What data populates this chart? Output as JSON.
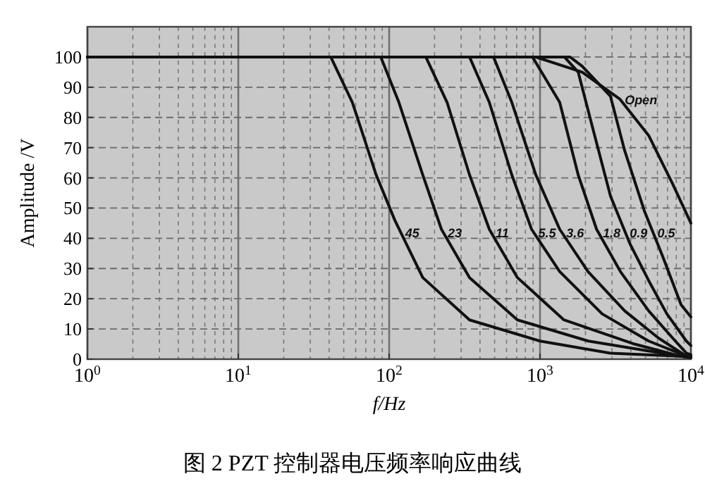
{
  "chart_data": {
    "type": "line",
    "title": "图 2 PZT 控制器电压频率响应曲线",
    "xlabel": "f/Hz",
    "ylabel": "Amplitude /V",
    "log": "x",
    "xlim": [
      1,
      10000
    ],
    "xticks": [
      {
        "value": 1,
        "label": "10$^{0}$"
      },
      {
        "value": 10,
        "label": "10$^{1}$"
      },
      {
        "value": 100,
        "label": "10$^{2}$"
      },
      {
        "value": 1000,
        "label": "10$^{3}$"
      },
      {
        "value": 10000,
        "label": "10$^{4}$"
      }
    ],
    "ylim": [
      0,
      110
    ],
    "yticks": [
      0,
      10,
      20,
      30,
      40,
      50,
      60,
      70,
      80,
      90,
      100
    ],
    "grid": true,
    "marker": "none",
    "line_style": "solid",
    "series": [
      {
        "name": "45",
        "color": "#111111",
        "x": [
          1,
          41,
          57,
          82,
          109,
          167,
          341,
          1000,
          2930,
          8510,
          10000
        ],
        "values": [
          100,
          100,
          85,
          61,
          46,
          27,
          13,
          6,
          2,
          1,
          0.5
        ]
      },
      {
        "name": "23",
        "color": "#111111",
        "x": [
          1,
          88,
          116,
          167,
          222,
          341,
          708,
          2090,
          8510,
          10000
        ],
        "values": [
          100,
          100,
          85,
          61,
          43,
          27,
          13,
          6,
          1,
          1
        ]
      },
      {
        "name": "11",
        "color": "#111111",
        "x": [
          1,
          175,
          242,
          341,
          461,
          708,
          1440,
          4230,
          8510,
          10000
        ],
        "values": [
          100,
          100,
          85,
          61,
          43,
          27,
          13,
          5,
          1,
          0.6
        ]
      },
      {
        "name": "5.5",
        "color": "#111111",
        "x": [
          1,
          341,
          461,
          650,
          879,
          1350,
          2580,
          5250,
          9330,
          10000
        ],
        "values": [
          100,
          100,
          85,
          61,
          43,
          29,
          15,
          6,
          1,
          0.5
        ]
      },
      {
        "name": "3.6",
        "color": "#111111",
        "x": [
          1,
          492,
          650,
          938,
          1350,
          2080,
          3640,
          6100,
          9330,
          10000
        ],
        "values": [
          100,
          100,
          85,
          61,
          43,
          29,
          16,
          7,
          1,
          1
        ]
      },
      {
        "name": "1.8",
        "color": "#111111",
        "x": [
          1,
          891,
          1350,
          1790,
          2370,
          3410,
          5250,
          7570,
          9330,
          10000
        ],
        "values": [
          100,
          100,
          85,
          61,
          43,
          29,
          16,
          7,
          2,
          1.5
        ]
      },
      {
        "name": "0.9",
        "color": "#111111",
        "x": [
          1,
          1450,
          1790,
          2220,
          2930,
          3960,
          5250,
          6930,
          9330,
          10000
        ],
        "values": [
          100,
          100,
          95,
          77,
          54,
          38,
          26,
          15,
          6,
          4.5
        ]
      },
      {
        "name": "0.5",
        "color": "#111111",
        "x": [
          1,
          1580,
          1900,
          2930,
          3640,
          4920,
          6500,
          8610,
          10000
        ],
        "values": [
          100,
          100,
          97,
          87,
          69,
          49,
          34,
          18,
          14
        ]
      },
      {
        "name": "Open",
        "color": "#111111",
        "x": [
          1,
          933,
          1900,
          3390,
          5250,
          7570,
          10000
        ],
        "values": [
          100,
          100,
          95,
          86,
          74,
          58,
          45
        ]
      }
    ]
  }
}
